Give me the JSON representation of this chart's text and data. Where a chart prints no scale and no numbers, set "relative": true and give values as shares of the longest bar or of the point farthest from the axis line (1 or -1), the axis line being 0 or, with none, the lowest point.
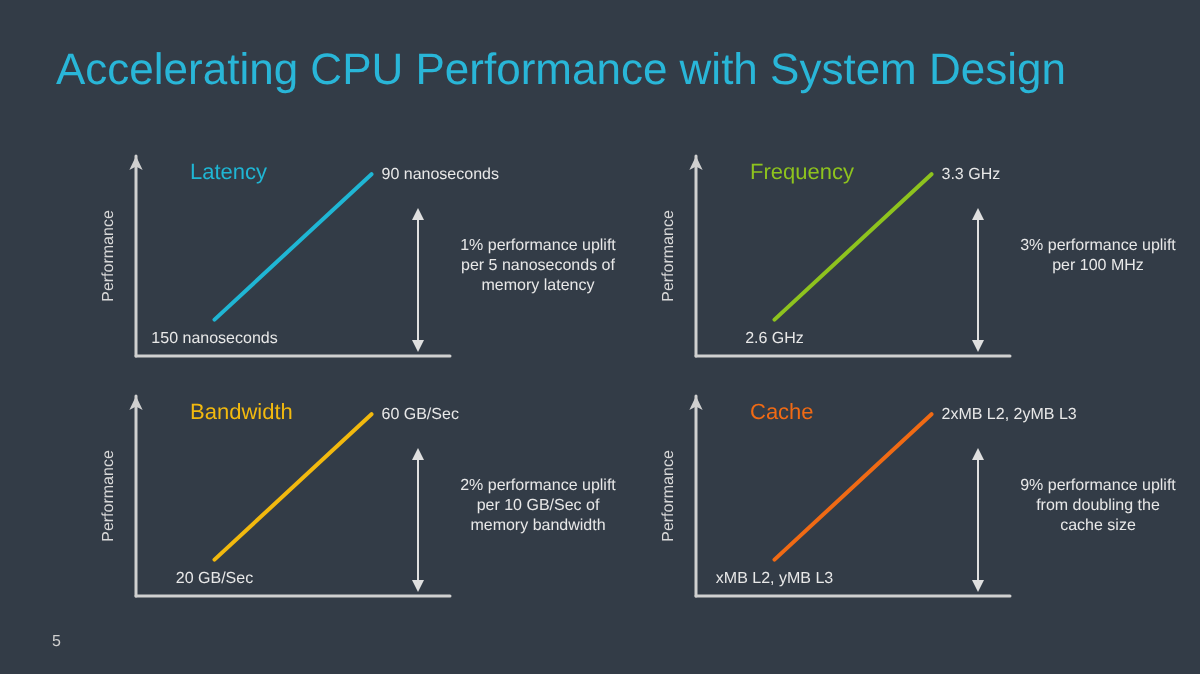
{
  "chart_data": [
    {
      "type": "other",
      "title": "Accelerating CPU Performance with System Design",
      "annotations": [
        "5"
      ]
    },
    {
      "type": "line",
      "title": "Latency",
      "ylabel": "Performance",
      "relative": true,
      "categories": [
        null,
        null
      ],
      "grid": false,
      "marker": "none",
      "series": [
        {
          "color": "#1fb6d4",
          "values": [
            0.2,
            1
          ]
        }
      ],
      "annotations": [
        "150 nanoseconds",
        "90 nanoseconds",
        "1% performance uplift per 5 nanoseconds of memory latency"
      ]
    },
    {
      "type": "line",
      "title": "Frequency",
      "ylabel": "Performance",
      "relative": true,
      "categories": [
        null,
        null
      ],
      "grid": false,
      "marker": "none",
      "series": [
        {
          "color": "#8ec31e",
          "values": [
            0.2,
            1
          ]
        }
      ],
      "annotations": [
        "2.6 GHz",
        "3.3 GHz",
        "3% performance uplift per 100 MHz"
      ]
    },
    {
      "type": "line",
      "title": "Bandwidth",
      "ylabel": "Performance",
      "relative": true,
      "categories": [
        null,
        null
      ],
      "grid": false,
      "marker": "none",
      "series": [
        {
          "color": "#f2b90e",
          "values": [
            0.2,
            1
          ]
        }
      ],
      "annotations": [
        "20 GB/Sec",
        "60 GB/Sec",
        "2% performance uplift per 10 GB/Sec of memory bandwidth"
      ]
    },
    {
      "type": "line",
      "title": "Cache",
      "ylabel": "Performance",
      "relative": true,
      "categories": [
        null,
        null
      ],
      "grid": false,
      "marker": "none",
      "series": [
        {
          "color": "#f06a14",
          "values": [
            0.2,
            1
          ]
        }
      ],
      "annotations": [
        "xMB L2, yMB L3",
        "2xMB L2, 2yMB L3",
        "9% performance uplift from doubling the cache size"
      ]
    }
  ]
}
